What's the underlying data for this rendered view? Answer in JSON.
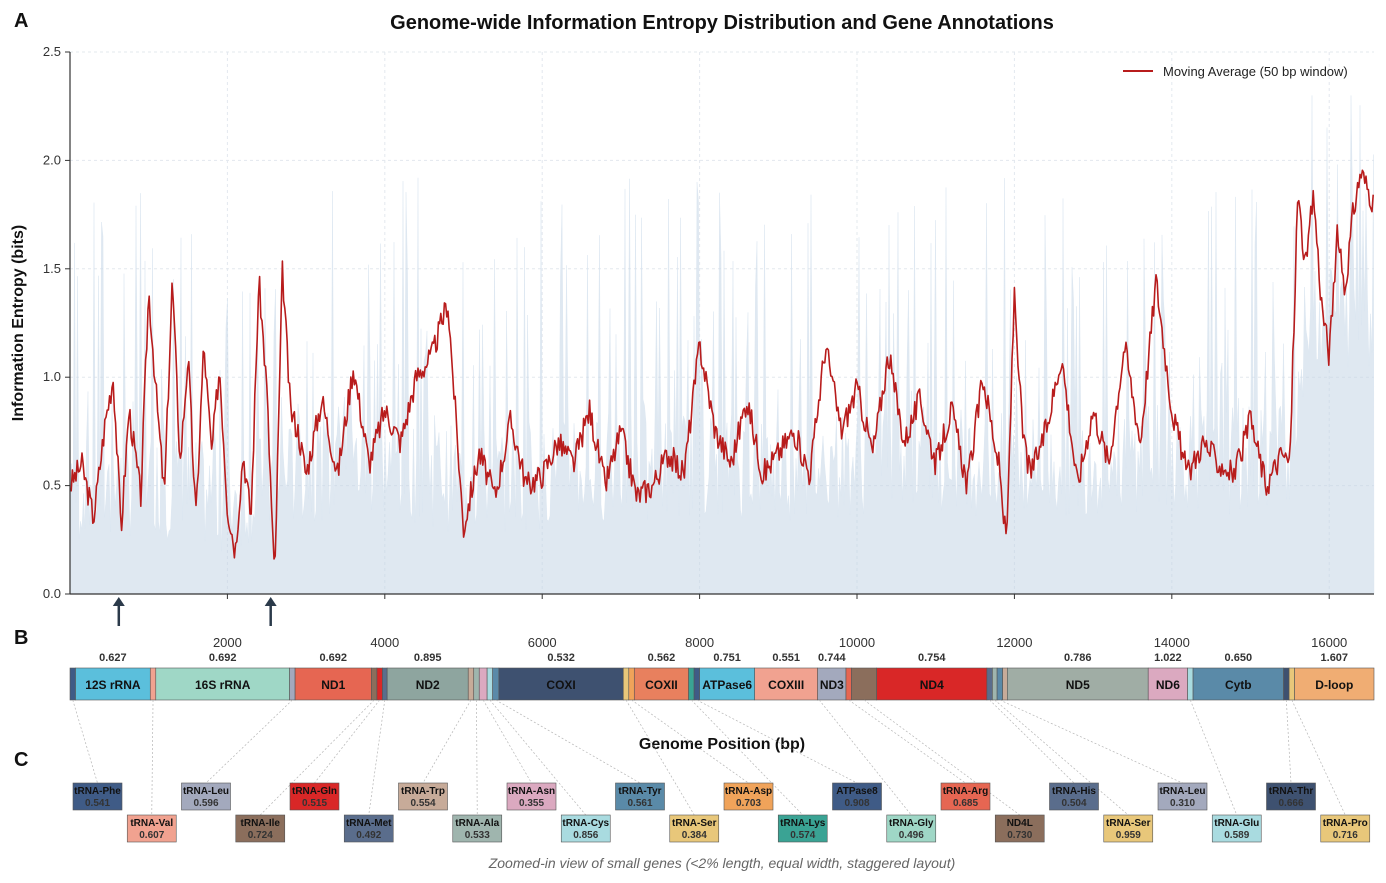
{
  "panel_labels": {
    "a": "A",
    "b": "B",
    "c": "C"
  },
  "chart_data": [
    {
      "type": "area",
      "title": "Genome-wide Information Entropy Distribution and Gene Annotations",
      "xlabel": "Genome Position (bp)",
      "ylabel": "Information Entropy (bits)",
      "xlim": [
        0,
        16569
      ],
      "ylim": [
        0,
        2.5
      ],
      "xticks": [
        2000,
        4000,
        6000,
        8000,
        10000,
        12000,
        14000,
        16000
      ],
      "yticks": [
        "0.0",
        "0.5",
        "1.0",
        "1.5",
        "2.0",
        "2.5"
      ],
      "grid": true,
      "legend_position": "top-right",
      "series": [
        {
          "name": "Moving Average (50 bp window)",
          "color": "#b81c1c",
          "x": [
            0,
            150,
            300,
            450,
            550,
            650,
            750,
            900,
            1000,
            1100,
            1200,
            1300,
            1400,
            1500,
            1600,
            1700,
            1800,
            1900,
            2000,
            2100,
            2200,
            2300,
            2400,
            2500,
            2600,
            2700,
            2800,
            2900,
            3000,
            3200,
            3400,
            3600,
            3800,
            4000,
            4200,
            4400,
            4600,
            4800,
            5000,
            5200,
            5400,
            5600,
            5800,
            6000,
            6200,
            6400,
            6600,
            6800,
            7000,
            7200,
            7400,
            7600,
            7800,
            8000,
            8200,
            8400,
            8600,
            8800,
            9000,
            9200,
            9400,
            9600,
            9800,
            10000,
            10200,
            10400,
            10600,
            10800,
            11000,
            11200,
            11400,
            11600,
            11800,
            11900,
            12000,
            12100,
            12200,
            12400,
            12600,
            12800,
            13000,
            13200,
            13400,
            13600,
            13800,
            14000,
            14200,
            14400,
            14600,
            14800,
            15000,
            15200,
            15400,
            15500,
            15600,
            15700,
            15800,
            15900,
            16000,
            16100,
            16200,
            16300,
            16400,
            16569
          ],
          "values": [
            0.5,
            0.6,
            0.35,
            0.8,
            1.0,
            0.3,
            0.85,
            0.45,
            1.4,
            0.9,
            0.45,
            1.45,
            0.6,
            1.1,
            0.35,
            1.15,
            0.65,
            1.05,
            0.4,
            0.2,
            0.65,
            0.35,
            1.45,
            0.95,
            0.05,
            1.5,
            0.85,
            0.75,
            0.55,
            0.9,
            0.55,
            1.05,
            0.6,
            0.85,
            0.7,
            1.0,
            1.1,
            1.35,
            0.3,
            0.65,
            0.45,
            0.8,
            0.5,
            0.55,
            0.7,
            0.6,
            0.85,
            0.5,
            0.75,
            0.45,
            0.5,
            0.65,
            0.55,
            1.15,
            0.75,
            0.6,
            0.9,
            0.55,
            0.65,
            0.75,
            0.55,
            1.15,
            0.75,
            0.95,
            0.65,
            1.1,
            0.7,
            0.9,
            0.6,
            0.85,
            0.5,
            1.0,
            0.6,
            0.22,
            1.4,
            0.75,
            0.55,
            0.75,
            1.1,
            0.5,
            0.85,
            0.6,
            1.15,
            0.7,
            1.45,
            0.85,
            0.55,
            0.7,
            0.6,
            0.55,
            0.8,
            0.5,
            0.65,
            0.6,
            1.85,
            1.5,
            1.85,
            1.35,
            1.1,
            1.65,
            1.4,
            1.75,
            1.95,
            1.8
          ]
        },
        {
          "name": "",
          "color": "#c5d6e6",
          "x": [
            0,
            1000,
            2000,
            3000,
            4000,
            5000,
            6000,
            7000,
            8000,
            9000,
            10000,
            11000,
            12000,
            13000,
            14000,
            15000,
            15500,
            15700,
            16000,
            16569
          ],
          "values": [
            0.35,
            0.45,
            0.3,
            0.55,
            0.6,
            0.45,
            0.5,
            0.55,
            0.6,
            0.55,
            0.6,
            0.65,
            0.55,
            0.6,
            0.65,
            0.6,
            0.7,
            1.6,
            1.7,
            1.75
          ]
        }
      ],
      "annotations": [
        {
          "type": "arrow",
          "x": 620
        },
        {
          "type": "arrow",
          "x": 2550
        }
      ]
    },
    {
      "type": "table",
      "genes": [
        {
          "name": "",
          "start": 0,
          "end": 70,
          "color": "#3f5b86",
          "value": ""
        },
        {
          "name": "12S rRNA",
          "start": 70,
          "end": 1020,
          "color": "#5bbfdc",
          "value": "0.627"
        },
        {
          "name": "",
          "start": 1020,
          "end": 1090,
          "color": "#f1a290",
          "value": ""
        },
        {
          "name": "16S rRNA",
          "start": 1090,
          "end": 2790,
          "color": "#9fd7c6",
          "value": "0.692"
        },
        {
          "name": "",
          "start": 2790,
          "end": 2860,
          "color": "#a3a9bd",
          "value": ""
        },
        {
          "name": "ND1",
          "start": 2860,
          "end": 3830,
          "color": "#e66652",
          "value": "0.692"
        },
        {
          "name": "",
          "start": 3830,
          "end": 3900,
          "color": "#8b6e5c",
          "value": ""
        },
        {
          "name": "",
          "start": 3900,
          "end": 3970,
          "color": "#d92727",
          "value": ""
        },
        {
          "name": "",
          "start": 3970,
          "end": 4030,
          "color": "#5a6d8c",
          "value": ""
        },
        {
          "name": "ND2",
          "start": 4030,
          "end": 5060,
          "color": "#8ea59f",
          "value": "0.895"
        },
        {
          "name": "",
          "start": 5060,
          "end": 5130,
          "color": "#c7ab99",
          "value": ""
        },
        {
          "name": "",
          "start": 5130,
          "end": 5200,
          "color": "#9fb5ae",
          "value": ""
        },
        {
          "name": "",
          "start": 5200,
          "end": 5300,
          "color": "#dba9c0",
          "value": ""
        },
        {
          "name": "",
          "start": 5300,
          "end": 5370,
          "color": "#a9dbe0",
          "value": ""
        },
        {
          "name": "",
          "start": 5370,
          "end": 5450,
          "color": "#5a8aa8",
          "value": ""
        },
        {
          "name": "COXI",
          "start": 5450,
          "end": 7030,
          "color": "#3e5170",
          "value": "0.532"
        },
        {
          "name": "",
          "start": 7030,
          "end": 7100,
          "color": "#e8c77a",
          "value": ""
        },
        {
          "name": "",
          "start": 7100,
          "end": 7170,
          "color": "#f0a35a",
          "value": ""
        },
        {
          "name": "COXII",
          "start": 7170,
          "end": 7860,
          "color": "#e8805e",
          "value": "0.562"
        },
        {
          "name": "",
          "start": 7860,
          "end": 7930,
          "color": "#3aa394",
          "value": ""
        },
        {
          "name": "",
          "start": 7930,
          "end": 8000,
          "color": "#3f5b86",
          "value": ""
        },
        {
          "name": "ATPase6",
          "start": 8000,
          "end": 8700,
          "color": "#5bbfdc",
          "value": "0.751"
        },
        {
          "name": "COXIII",
          "start": 8700,
          "end": 9500,
          "color": "#f1a290",
          "value": "0.551"
        },
        {
          "name": "ND3",
          "start": 9500,
          "end": 9860,
          "color": "#a3a9bd",
          "value": "0.744"
        },
        {
          "name": "",
          "start": 9860,
          "end": 9930,
          "color": "#e66652",
          "value": ""
        },
        {
          "name": "",
          "start": 9930,
          "end": 10250,
          "color": "#8b6e5c",
          "value": ""
        },
        {
          "name": "ND4",
          "start": 10250,
          "end": 11650,
          "color": "#d92727",
          "value": "0.754"
        },
        {
          "name": "",
          "start": 11650,
          "end": 11720,
          "color": "#5a6d8c",
          "value": ""
        },
        {
          "name": "",
          "start": 11720,
          "end": 11780,
          "color": "#9fb5ae",
          "value": ""
        },
        {
          "name": "",
          "start": 11780,
          "end": 11850,
          "color": "#5a8aa8",
          "value": ""
        },
        {
          "name": "",
          "start": 11850,
          "end": 11910,
          "color": "#c7ab99",
          "value": ""
        },
        {
          "name": "ND5",
          "start": 11910,
          "end": 13700,
          "color": "#a0ada5",
          "value": "0.786"
        },
        {
          "name": "ND6",
          "start": 13700,
          "end": 14200,
          "color": "#dba9c0",
          "value": "1.022"
        },
        {
          "name": "",
          "start": 14200,
          "end": 14270,
          "color": "#a9dbe0",
          "value": ""
        },
        {
          "name": "Cytb",
          "start": 14270,
          "end": 15420,
          "color": "#5a8aa8",
          "value": "0.650"
        },
        {
          "name": "",
          "start": 15420,
          "end": 15490,
          "color": "#3e5170",
          "value": ""
        },
        {
          "name": "",
          "start": 15490,
          "end": 15560,
          "color": "#e8c77a",
          "value": ""
        },
        {
          "name": "D-loop",
          "start": 15560,
          "end": 16569,
          "color": "#f0ad73",
          "value": "1.607"
        }
      ]
    },
    {
      "type": "table",
      "caption": "Zoomed-in view of small genes (<2% length, equal width, staggered layout)",
      "small_genes": [
        {
          "name": "tRNA-Phe",
          "value": "0.541",
          "color": "#3f5b86",
          "pos": 35
        },
        {
          "name": "tRNA-Val",
          "value": "0.607",
          "color": "#f1a290",
          "pos": 1055
        },
        {
          "name": "tRNA-Leu",
          "value": "0.596",
          "color": "#a3a9bd",
          "pos": 2825
        },
        {
          "name": "tRNA-Ile",
          "value": "0.724",
          "color": "#8b6e5c",
          "pos": 3865
        },
        {
          "name": "tRNA-Gln",
          "value": "0.515",
          "color": "#d92727",
          "pos": 3935
        },
        {
          "name": "tRNA-Met",
          "value": "0.492",
          "color": "#5a6d8c",
          "pos": 4000
        },
        {
          "name": "tRNA-Trp",
          "value": "0.554",
          "color": "#c7ab99",
          "pos": 5095
        },
        {
          "name": "tRNA-Ala",
          "value": "0.533",
          "color": "#9fb5ae",
          "pos": 5165
        },
        {
          "name": "tRNA-Asn",
          "value": "0.355",
          "color": "#dba9c0",
          "pos": 5250
        },
        {
          "name": "tRNA-Cys",
          "value": "0.856",
          "color": "#a9dbe0",
          "pos": 5335
        },
        {
          "name": "tRNA-Tyr",
          "value": "0.561",
          "color": "#5a8aa8",
          "pos": 5410
        },
        {
          "name": "tRNA-Ser",
          "value": "0.384",
          "color": "#e8c77a",
          "pos": 7065
        },
        {
          "name": "tRNA-Asp",
          "value": "0.703",
          "color": "#f0a35a",
          "pos": 7135
        },
        {
          "name": "tRNA-Lys",
          "value": "0.574",
          "color": "#3aa394",
          "pos": 7895
        },
        {
          "name": "ATPase8",
          "value": "0.908",
          "color": "#3f5b86",
          "pos": 7965
        },
        {
          "name": "tRNA-Gly",
          "value": "0.496",
          "color": "#9fd7c6",
          "pos": 9520
        },
        {
          "name": "tRNA-Arg",
          "value": "0.685",
          "color": "#e66652",
          "pos": 9895
        },
        {
          "name": "ND4L",
          "value": "0.730",
          "color": "#8b6e5c",
          "pos": 10090
        },
        {
          "name": "tRNA-His",
          "value": "0.504",
          "color": "#5a6d8c",
          "pos": 11685
        },
        {
          "name": "tRNA-Ser",
          "value": "0.959",
          "color": "#e8c77a",
          "pos": 11750
        },
        {
          "name": "tRNA-Leu",
          "value": "0.310",
          "color": "#a3a9bd",
          "pos": 11815
        },
        {
          "name": "tRNA-Glu",
          "value": "0.589",
          "color": "#a9dbe0",
          "pos": 14235
        },
        {
          "name": "tRNA-Thr",
          "value": "0.666",
          "color": "#3e5170",
          "pos": 15455
        },
        {
          "name": "tRNA-Pro",
          "value": "0.716",
          "color": "#e8c77a",
          "pos": 15525
        }
      ]
    }
  ]
}
